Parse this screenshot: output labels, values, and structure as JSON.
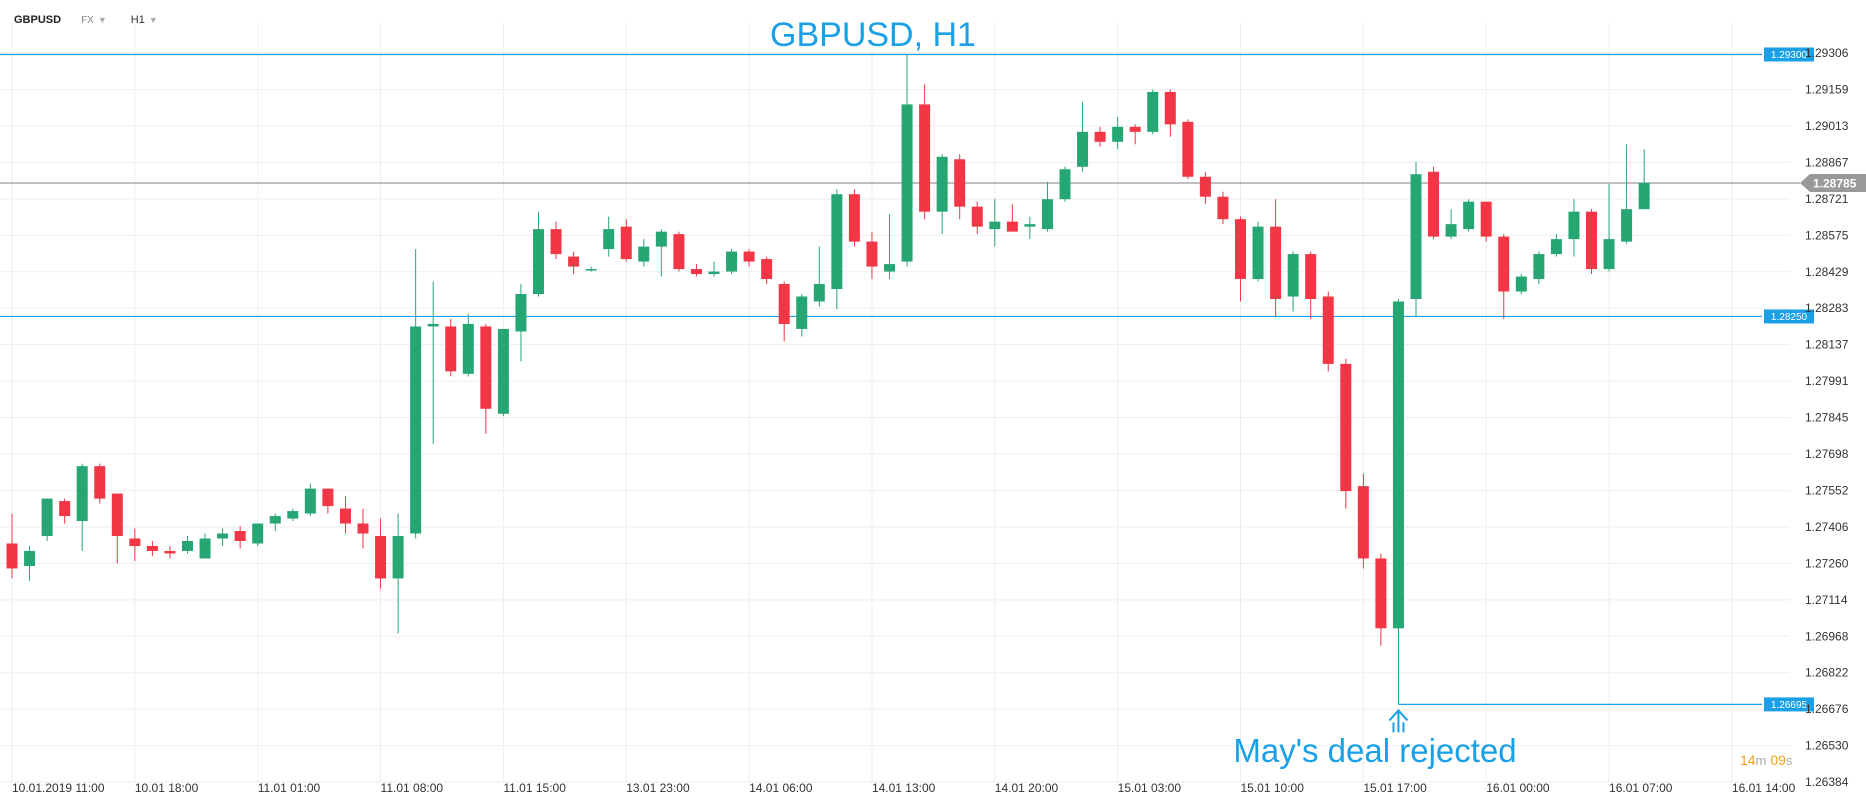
{
  "toolbar": {
    "symbol": "GBPUSD",
    "market": "FX",
    "timeframe": "H1"
  },
  "timer": {
    "minutes": "14",
    "m_unit": "m",
    "seconds": "09",
    "s_unit": "s"
  },
  "colors": {
    "up": "#26a673",
    "down": "#f23645",
    "level": "#1aa0e6",
    "current": "#999999",
    "grid": "#eeeeee"
  },
  "chart_data": {
    "type": "candlestick",
    "title": "GBPUSD, H1",
    "annotation": "May's deal rejected",
    "y_ticks": [
      "1.29306",
      "1.29159",
      "1.29013",
      "1.28867",
      "1.28721",
      "1.28575",
      "1.28429",
      "1.28283",
      "1.28137",
      "1.27991",
      "1.27845",
      "1.27698",
      "1.27552",
      "1.27406",
      "1.27260",
      "1.27114",
      "1.26968",
      "1.26822",
      "1.26676",
      "1.26530",
      "1.26384"
    ],
    "ylim": [
      1.26384,
      1.29306
    ],
    "x_ticks": [
      "10.01.2019  11:00",
      "10.01  18:00",
      "11.01  01:00",
      "11.01  08:00",
      "11.01  15:00",
      "13.01  23:00",
      "14.01  06:00",
      "14.01  13:00",
      "14.01  20:00",
      "15.01  03:00",
      "15.01  10:00",
      "15.01  17:00",
      "16.01  00:00",
      "16.01  07:00",
      "16.01  14:00"
    ],
    "levels": [
      {
        "label": "1.29300",
        "value": 1.293
      },
      {
        "label": "1.28250",
        "value": 1.2825
      },
      {
        "label": "1.26695",
        "value": 1.26695
      }
    ],
    "current_price": {
      "label": "1.28785",
      "value": 1.28785
    },
    "candles": [
      {
        "o": 1.2734,
        "h": 1.2746,
        "l": 1.272,
        "c": 1.2724
      },
      {
        "o": 1.2725,
        "h": 1.2733,
        "l": 1.2719,
        "c": 1.2731
      },
      {
        "o": 1.2737,
        "h": 1.2752,
        "l": 1.2735,
        "c": 1.2752
      },
      {
        "o": 1.2751,
        "h": 1.2752,
        "l": 1.2742,
        "c": 1.2745
      },
      {
        "o": 1.2743,
        "h": 1.2766,
        "l": 1.2731,
        "c": 1.2765
      },
      {
        "o": 1.2765,
        "h": 1.2766,
        "l": 1.275,
        "c": 1.2752
      },
      {
        "o": 1.2754,
        "h": 1.2754,
        "l": 1.2726,
        "c": 1.2737
      },
      {
        "o": 1.2736,
        "h": 1.274,
        "l": 1.2727,
        "c": 1.2733
      },
      {
        "o": 1.2733,
        "h": 1.2735,
        "l": 1.2729,
        "c": 1.2731
      },
      {
        "o": 1.2731,
        "h": 1.2733,
        "l": 1.2728,
        "c": 1.273
      },
      {
        "o": 1.2731,
        "h": 1.2737,
        "l": 1.273,
        "c": 1.2735
      },
      {
        "o": 1.2728,
        "h": 1.2738,
        "l": 1.2728,
        "c": 1.2736
      },
      {
        "o": 1.2736,
        "h": 1.274,
        "l": 1.2733,
        "c": 1.2738
      },
      {
        "o": 1.2739,
        "h": 1.2741,
        "l": 1.2732,
        "c": 1.2735
      },
      {
        "o": 1.2734,
        "h": 1.2742,
        "l": 1.2733,
        "c": 1.2742
      },
      {
        "o": 1.2742,
        "h": 1.2746,
        "l": 1.2739,
        "c": 1.2745
      },
      {
        "o": 1.2744,
        "h": 1.2748,
        "l": 1.2743,
        "c": 1.2747
      },
      {
        "o": 1.2746,
        "h": 1.2758,
        "l": 1.2745,
        "c": 1.2756
      },
      {
        "o": 1.2756,
        "h": 1.2756,
        "l": 1.2746,
        "c": 1.2749
      },
      {
        "o": 1.2748,
        "h": 1.2753,
        "l": 1.2738,
        "c": 1.2742
      },
      {
        "o": 1.2742,
        "h": 1.2748,
        "l": 1.2732,
        "c": 1.2738
      },
      {
        "o": 1.2737,
        "h": 1.2744,
        "l": 1.2716,
        "c": 1.272
      },
      {
        "o": 1.272,
        "h": 1.2746,
        "l": 1.2698,
        "c": 1.2737
      },
      {
        "o": 1.2738,
        "h": 1.2852,
        "l": 1.2736,
        "c": 1.2821
      },
      {
        "o": 1.2821,
        "h": 1.2839,
        "l": 1.2774,
        "c": 1.2822
      },
      {
        "o": 1.2821,
        "h": 1.2824,
        "l": 1.2801,
        "c": 1.2803
      },
      {
        "o": 1.2802,
        "h": 1.2826,
        "l": 1.2801,
        "c": 1.2822
      },
      {
        "o": 1.2821,
        "h": 1.2822,
        "l": 1.2778,
        "c": 1.2788
      },
      {
        "o": 1.2786,
        "h": 1.282,
        "l": 1.2785,
        "c": 1.282
      },
      {
        "o": 1.2819,
        "h": 1.2838,
        "l": 1.2807,
        "c": 1.2834
      },
      {
        "o": 1.2834,
        "h": 1.2867,
        "l": 1.2833,
        "c": 1.286
      },
      {
        "o": 1.286,
        "h": 1.2863,
        "l": 1.2848,
        "c": 1.285
      },
      {
        "o": 1.2849,
        "h": 1.2851,
        "l": 1.2842,
        "c": 1.2845
      },
      {
        "o": 1.2844,
        "h": 1.2845,
        "l": 1.2843,
        "c": 1.2844
      },
      {
        "o": 1.2852,
        "h": 1.2865,
        "l": 1.2849,
        "c": 1.286
      },
      {
        "o": 1.2861,
        "h": 1.2864,
        "l": 1.2847,
        "c": 1.2848
      },
      {
        "o": 1.2847,
        "h": 1.2856,
        "l": 1.2845,
        "c": 1.2853
      },
      {
        "o": 1.2853,
        "h": 1.286,
        "l": 1.2841,
        "c": 1.2859
      },
      {
        "o": 1.2858,
        "h": 1.2859,
        "l": 1.2843,
        "c": 1.2844
      },
      {
        "o": 1.2844,
        "h": 1.2846,
        "l": 1.2841,
        "c": 1.2842
      },
      {
        "o": 1.2842,
        "h": 1.2847,
        "l": 1.2841,
        "c": 1.2843
      },
      {
        "o": 1.2843,
        "h": 1.2852,
        "l": 1.2842,
        "c": 1.2851
      },
      {
        "o": 1.2851,
        "h": 1.2852,
        "l": 1.2845,
        "c": 1.2847
      },
      {
        "o": 1.2848,
        "h": 1.2849,
        "l": 1.2838,
        "c": 1.284
      },
      {
        "o": 1.2838,
        "h": 1.2839,
        "l": 1.2815,
        "c": 1.2822
      },
      {
        "o": 1.282,
        "h": 1.2834,
        "l": 1.2817,
        "c": 1.2833
      },
      {
        "o": 1.2831,
        "h": 1.2853,
        "l": 1.2829,
        "c": 1.2838
      },
      {
        "o": 1.2836,
        "h": 1.2876,
        "l": 1.2828,
        "c": 1.2874
      },
      {
        "o": 1.2874,
        "h": 1.2876,
        "l": 1.2853,
        "c": 1.2855
      },
      {
        "o": 1.2855,
        "h": 1.2859,
        "l": 1.284,
        "c": 1.2845
      },
      {
        "o": 1.2843,
        "h": 1.2866,
        "l": 1.284,
        "c": 1.2846
      },
      {
        "o": 1.2847,
        "h": 1.293,
        "l": 1.2845,
        "c": 1.291
      },
      {
        "o": 1.291,
        "h": 1.2918,
        "l": 1.2864,
        "c": 1.2867
      },
      {
        "o": 1.2867,
        "h": 1.289,
        "l": 1.2858,
        "c": 1.2889
      },
      {
        "o": 1.2888,
        "h": 1.289,
        "l": 1.2864,
        "c": 1.2869
      },
      {
        "o": 1.2869,
        "h": 1.2871,
        "l": 1.2858,
        "c": 1.2861
      },
      {
        "o": 1.286,
        "h": 1.2872,
        "l": 1.2853,
        "c": 1.2863
      },
      {
        "o": 1.2863,
        "h": 1.287,
        "l": 1.2859,
        "c": 1.2859
      },
      {
        "o": 1.2861,
        "h": 1.2865,
        "l": 1.2856,
        "c": 1.2862
      },
      {
        "o": 1.286,
        "h": 1.2879,
        "l": 1.2859,
        "c": 1.2872
      },
      {
        "o": 1.2872,
        "h": 1.2885,
        "l": 1.2871,
        "c": 1.2884
      },
      {
        "o": 1.2885,
        "h": 1.2911,
        "l": 1.2883,
        "c": 1.2899
      },
      {
        "o": 1.2899,
        "h": 1.2901,
        "l": 1.2893,
        "c": 1.2895
      },
      {
        "o": 1.2895,
        "h": 1.2905,
        "l": 1.2892,
        "c": 1.2901
      },
      {
        "o": 1.2901,
        "h": 1.2902,
        "l": 1.2894,
        "c": 1.2899
      },
      {
        "o": 1.2899,
        "h": 1.2916,
        "l": 1.2898,
        "c": 1.2915
      },
      {
        "o": 1.2915,
        "h": 1.2916,
        "l": 1.2897,
        "c": 1.2902
      },
      {
        "o": 1.2903,
        "h": 1.2904,
        "l": 1.288,
        "c": 1.2881
      },
      {
        "o": 1.2881,
        "h": 1.2883,
        "l": 1.287,
        "c": 1.2873
      },
      {
        "o": 1.2873,
        "h": 1.2875,
        "l": 1.2862,
        "c": 1.2864
      },
      {
        "o": 1.2864,
        "h": 1.2865,
        "l": 1.2831,
        "c": 1.284
      },
      {
        "o": 1.284,
        "h": 1.2863,
        "l": 1.2839,
        "c": 1.2861
      },
      {
        "o": 1.2861,
        "h": 1.2872,
        "l": 1.2825,
        "c": 1.2832
      },
      {
        "o": 1.2833,
        "h": 1.2851,
        "l": 1.2827,
        "c": 1.285
      },
      {
        "o": 1.285,
        "h": 1.2851,
        "l": 1.2824,
        "c": 1.2832
      },
      {
        "o": 1.2833,
        "h": 1.2835,
        "l": 1.2803,
        "c": 1.2806
      },
      {
        "o": 1.2806,
        "h": 1.2808,
        "l": 1.2748,
        "c": 1.2755
      },
      {
        "o": 1.2757,
        "h": 1.2762,
        "l": 1.2724,
        "c": 1.2728
      },
      {
        "o": 1.2728,
        "h": 1.273,
        "l": 1.2693,
        "c": 1.27
      },
      {
        "o": 1.27,
        "h": 1.2832,
        "l": 1.26695,
        "c": 1.2831
      },
      {
        "o": 1.2832,
        "h": 1.2887,
        "l": 1.2825,
        "c": 1.2882
      },
      {
        "o": 1.2883,
        "h": 1.2885,
        "l": 1.2856,
        "c": 1.2857
      },
      {
        "o": 1.2857,
        "h": 1.2868,
        "l": 1.2856,
        "c": 1.2862
      },
      {
        "o": 1.286,
        "h": 1.2872,
        "l": 1.2859,
        "c": 1.2871
      },
      {
        "o": 1.2871,
        "h": 1.2871,
        "l": 1.2855,
        "c": 1.2857
      },
      {
        "o": 1.2857,
        "h": 1.2858,
        "l": 1.2824,
        "c": 1.2835
      },
      {
        "o": 1.2835,
        "h": 1.2842,
        "l": 1.2834,
        "c": 1.2841
      },
      {
        "o": 1.284,
        "h": 1.2851,
        "l": 1.2838,
        "c": 1.285
      },
      {
        "o": 1.285,
        "h": 1.2858,
        "l": 1.2849,
        "c": 1.2856
      },
      {
        "o": 1.2856,
        "h": 1.2872,
        "l": 1.2849,
        "c": 1.2867
      },
      {
        "o": 1.2867,
        "h": 1.2868,
        "l": 1.2842,
        "c": 1.2844
      },
      {
        "o": 1.2844,
        "h": 1.2878,
        "l": 1.2843,
        "c": 1.2856
      },
      {
        "o": 1.2855,
        "h": 1.2894,
        "l": 1.2854,
        "c": 1.2868
      },
      {
        "o": 1.2868,
        "h": 1.2892,
        "l": 1.2868,
        "c": 1.28785
      }
    ]
  }
}
